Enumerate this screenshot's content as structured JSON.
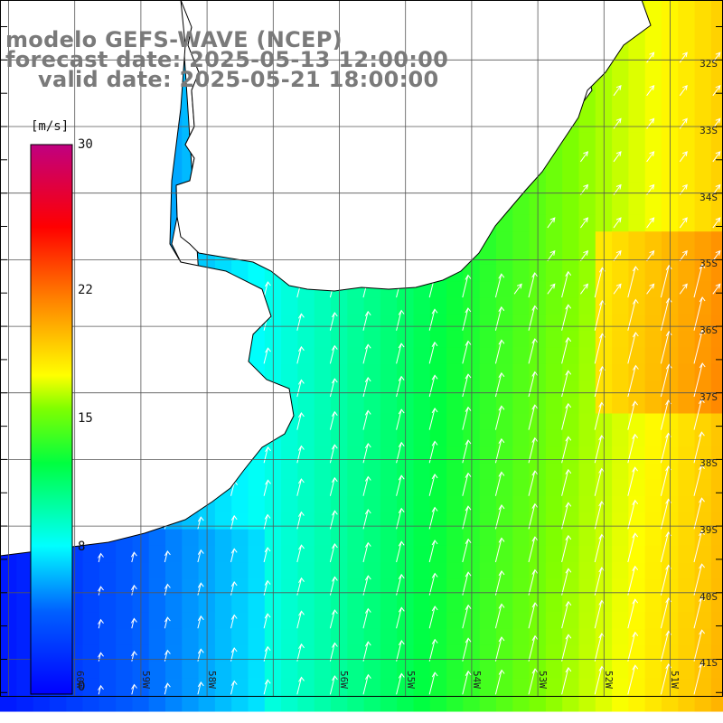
{
  "title": {
    "model": "modelo GEFS-WAVE (NCEP)",
    "forecast": "forecast date: 2025-05-13 12:00:00",
    "valid": "valid date: 2025-05-21 18:00:00"
  },
  "colorbar": {
    "unit": "[m/s]",
    "ticks": [
      "30",
      "22",
      "15",
      "8",
      "0"
    ],
    "tick_values": [
      30,
      22,
      15,
      8,
      0
    ],
    "range": [
      0,
      30
    ],
    "colors": [
      "#0000ff",
      "#00a0ff",
      "#00ffff",
      "#00ff00",
      "#ffff00",
      "#ff8000",
      "#ff0000",
      "#c00080"
    ]
  },
  "axes": {
    "lat_labels": [
      "32S",
      "33S",
      "34S",
      "35S",
      "36S",
      "37S",
      "38S",
      "39S",
      "40S",
      "41S"
    ],
    "lat_values": [
      -32,
      -33,
      -34,
      -35,
      -36,
      -37,
      -38,
      -39,
      -40,
      -41
    ],
    "lon_labels": [
      "60W",
      "59W",
      "58W",
      "56W",
      "55W",
      "54W",
      "53W",
      "52W",
      "51W"
    ],
    "lon_values": [
      -60,
      -59,
      -58,
      -56,
      -55,
      -54,
      -53,
      -52,
      -51
    ],
    "grid": true
  },
  "colors": {
    "land": "#ffffff",
    "coast": "#000000",
    "grid": "#555555",
    "arrow": "#ffffff",
    "title": "#7a7a7a"
  }
}
